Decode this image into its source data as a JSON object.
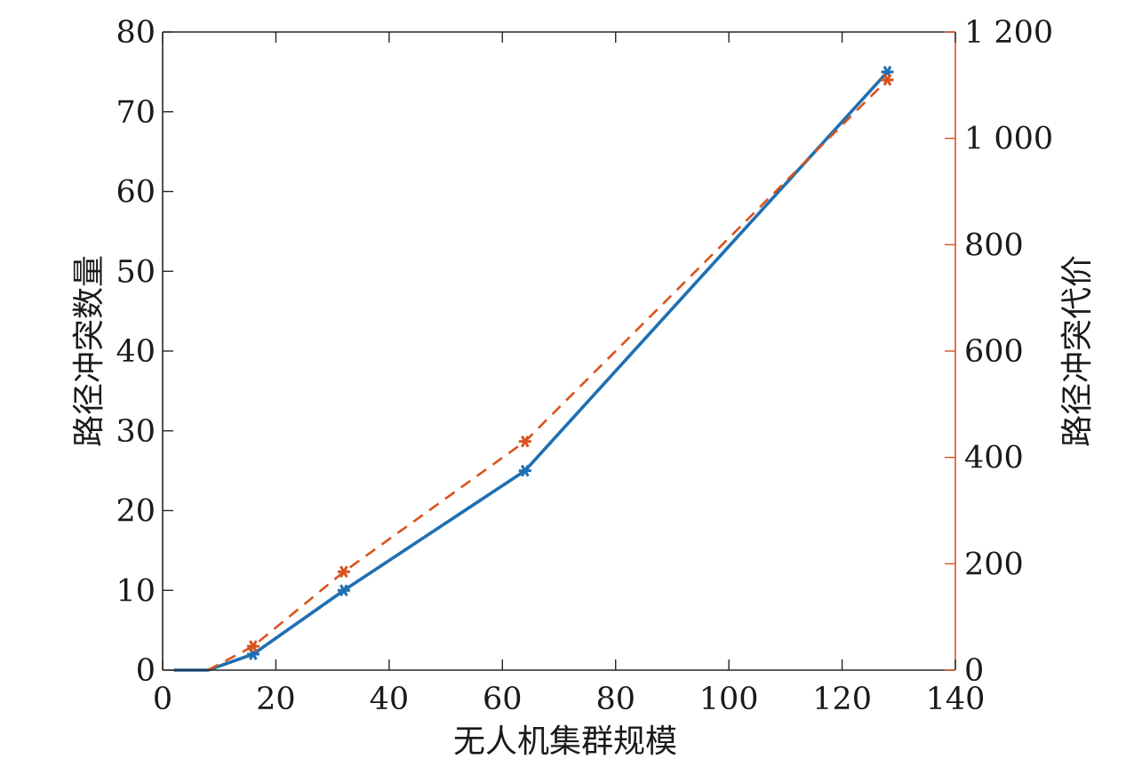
{
  "chart_data": {
    "type": "line",
    "xlabel": "无人机集群规模",
    "ylabel_left": "路径冲突数量",
    "ylabel_right": "路径冲突代价",
    "xlim": [
      0,
      140
    ],
    "ylim_left": [
      0,
      80
    ],
    "ylim_right": [
      0,
      1200
    ],
    "x_ticks": [
      "0",
      "20",
      "40",
      "60",
      "80",
      "100",
      "120",
      "140"
    ],
    "y_left_ticks": [
      "0",
      "10",
      "20",
      "30",
      "40",
      "50",
      "60",
      "70",
      "80"
    ],
    "y_right_ticks": [
      "0",
      "200",
      "400",
      "600",
      "800",
      "1 000",
      "1 200"
    ],
    "grid": false,
    "series": [
      {
        "axis": "left",
        "color": "#1f6fb2",
        "style": "solid",
        "marker": "asterisk",
        "x": [
          2,
          8,
          16,
          32,
          64,
          128
        ],
        "values": [
          0,
          0,
          2,
          10,
          25,
          75
        ],
        "marker_x": [
          16,
          32,
          64,
          128
        ],
        "marker_values": [
          2,
          10,
          25,
          75
        ]
      },
      {
        "axis": "right",
        "color": "#d9531e",
        "style": "dashed",
        "marker": "asterisk",
        "x": [
          8,
          16,
          32,
          64,
          128
        ],
        "values": [
          0,
          45,
          185,
          430,
          1110
        ],
        "marker_x": [
          16,
          32,
          64,
          128
        ],
        "marker_values": [
          45,
          185,
          430,
          1110
        ]
      }
    ]
  }
}
